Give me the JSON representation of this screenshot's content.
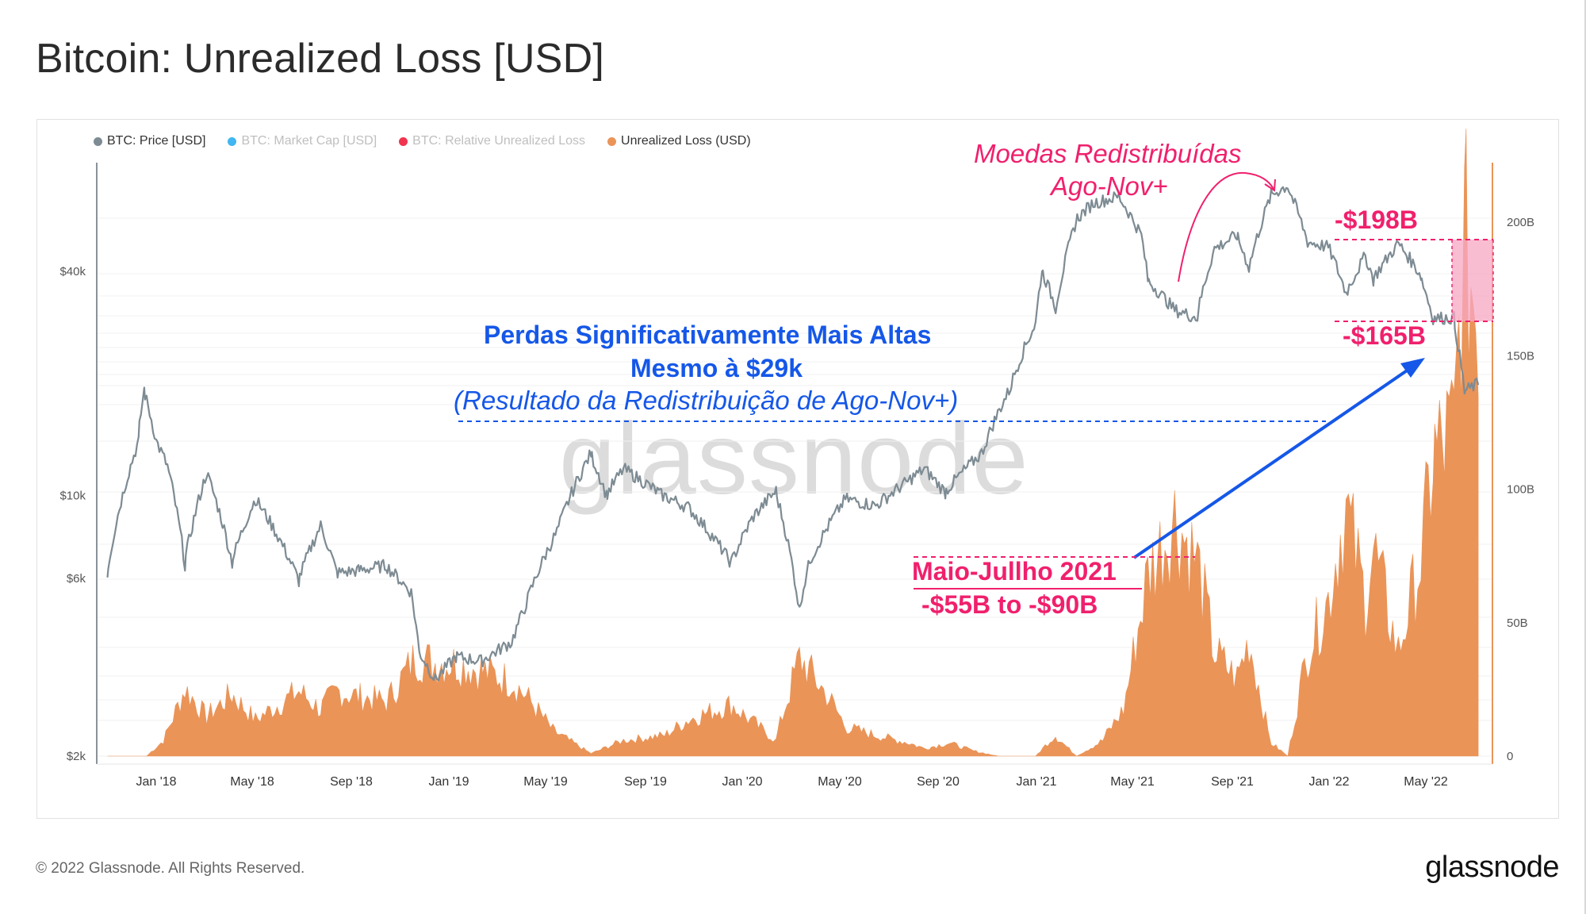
{
  "title": "Bitcoin: Unrealized Loss [USD]",
  "footer": "© 2022 Glassnode. All Rights Reserved.",
  "brand": "glassnode",
  "watermark": "glassnode",
  "legend": [
    {
      "label": "BTC: Price [USD]",
      "color": "#7d8b93",
      "active": true
    },
    {
      "label": "BTC: Market Cap [USD]",
      "color": "#41b6f0",
      "active": false
    },
    {
      "label": "BTC: Relative Unrealized Loss",
      "color": "#f0344e",
      "active": false
    },
    {
      "label": "Unrealized Loss (USD)",
      "color": "#ea9458",
      "active": true
    }
  ],
  "annotations": {
    "blue_line1": "Perdas Significativamente Mais Altas",
    "blue_line2": "Mesmo à $29k",
    "blue_line3": "(Resultado da Redistribuição de Ago-Nov+)",
    "pink_line1": "Moedas Redistribuídas",
    "pink_line2": "Ago-Nov+",
    "label_198": "-$198B",
    "label_165": "-$165B",
    "maio_line1": "Maio-Jullho 2021",
    "maio_line2": "-$55B to -$90B"
  },
  "chart_data": {
    "type": "line",
    "x_tick_labels": [
      "Jan '18",
      "May '18",
      "Sep '18",
      "Jan '19",
      "May '19",
      "Sep '19",
      "Jan '20",
      "May '20",
      "Sep '20",
      "Jan '21",
      "May '21",
      "Sep '21",
      "Jan '22",
      "May '22"
    ],
    "left_axis": {
      "scale": "log",
      "tick_labels": [
        "$2k",
        "$6k",
        "$10k",
        "$40k"
      ],
      "tick_values": [
        2000,
        6000,
        10000,
        40000
      ],
      "range": [
        2000,
        80000
      ]
    },
    "right_axis": {
      "scale": "linear",
      "tick_labels": [
        "0",
        "50B",
        "100B",
        "150B",
        "200B"
      ],
      "tick_values": [
        0,
        50,
        100,
        150,
        200
      ],
      "range": [
        0,
        225
      ]
    },
    "colors": {
      "price": "#7d8b93",
      "loss": "#ea9458",
      "blue": "#1557e8",
      "pink": "#f0206d"
    },
    "series": [
      {
        "name": "BTC: Price [USD]",
        "axis": "left",
        "points": [
          [
            "2017-11-01",
            6100
          ],
          [
            "2017-12-10",
            14000
          ],
          [
            "2017-12-17",
            19300
          ],
          [
            "2018-01-01",
            14000
          ],
          [
            "2018-01-15",
            12000
          ],
          [
            "2018-02-06",
            6500
          ],
          [
            "2018-03-05",
            11500
          ],
          [
            "2018-04-06",
            6600
          ],
          [
            "2018-05-05",
            9800
          ],
          [
            "2018-06-28",
            5900
          ],
          [
            "2018-07-25",
            8300
          ],
          [
            "2018-08-14",
            6200
          ],
          [
            "2018-09-10",
            6300
          ],
          [
            "2018-10-15",
            6500
          ],
          [
            "2018-11-15",
            5500
          ],
          [
            "2018-11-25",
            3800
          ],
          [
            "2018-12-15",
            3200
          ],
          [
            "2019-01-10",
            3700
          ],
          [
            "2019-02-10",
            3600
          ],
          [
            "2019-03-20",
            4050
          ],
          [
            "2019-04-05",
            5000
          ],
          [
            "2019-05-15",
            8000
          ],
          [
            "2019-06-26",
            13000
          ],
          [
            "2019-07-15",
            10000
          ],
          [
            "2019-08-05",
            11800
          ],
          [
            "2019-09-20",
            10100
          ],
          [
            "2019-10-25",
            9300
          ],
          [
            "2019-12-18",
            6600
          ],
          [
            "2020-01-15",
            8800
          ],
          [
            "2020-02-12",
            10300
          ],
          [
            "2020-03-12",
            4900
          ],
          [
            "2020-03-25",
            6700
          ],
          [
            "2020-05-08",
            9800
          ],
          [
            "2020-06-15",
            9400
          ],
          [
            "2020-07-27",
            11000
          ],
          [
            "2020-08-15",
            11800
          ],
          [
            "2020-09-10",
            10200
          ],
          [
            "2020-10-25",
            13000
          ],
          [
            "2020-11-30",
            19500
          ],
          [
            "2020-12-31",
            29000
          ],
          [
            "2021-01-08",
            40500
          ],
          [
            "2021-01-25",
            32000
          ],
          [
            "2021-02-20",
            55000
          ],
          [
            "2021-03-13",
            61000
          ],
          [
            "2021-04-14",
            63500
          ],
          [
            "2021-05-12",
            50000
          ],
          [
            "2021-05-20",
            38000
          ],
          [
            "2021-06-22",
            31500
          ],
          [
            "2021-07-20",
            30000
          ],
          [
            "2021-08-10",
            46000
          ],
          [
            "2021-09-07",
            50000
          ],
          [
            "2021-09-22",
            41000
          ],
          [
            "2021-10-20",
            64000
          ],
          [
            "2021-11-10",
            68000
          ],
          [
            "2021-12-05",
            48000
          ],
          [
            "2021-12-31",
            46500
          ],
          [
            "2022-01-22",
            35000
          ],
          [
            "2022-02-15",
            44000
          ],
          [
            "2022-02-25",
            38000
          ],
          [
            "2022-03-28",
            47500
          ],
          [
            "2022-04-25",
            39000
          ],
          [
            "2022-05-10",
            30000
          ],
          [
            "2022-06-05",
            30000
          ],
          [
            "2022-06-18",
            19000
          ],
          [
            "2022-07-05",
            20000
          ]
        ]
      },
      {
        "name": "Unrealized Loss (USD)",
        "axis": "right",
        "points": [
          [
            "2017-11-01",
            0
          ],
          [
            "2017-12-20",
            0
          ],
          [
            "2018-01-10",
            6
          ],
          [
            "2018-02-06",
            26
          ],
          [
            "2018-03-05",
            15
          ],
          [
            "2018-04-06",
            24
          ],
          [
            "2018-05-05",
            14
          ],
          [
            "2018-06-28",
            25
          ],
          [
            "2018-07-25",
            18
          ],
          [
            "2018-08-14",
            25
          ],
          [
            "2018-09-10",
            23
          ],
          [
            "2018-10-15",
            21
          ],
          [
            "2018-11-20",
            38
          ],
          [
            "2018-12-15",
            36
          ],
          [
            "2019-01-10",
            36
          ],
          [
            "2019-02-10",
            33
          ],
          [
            "2019-03-20",
            29
          ],
          [
            "2019-04-10",
            22
          ],
          [
            "2019-05-10",
            10
          ],
          [
            "2019-06-26",
            1
          ],
          [
            "2019-08-05",
            6
          ],
          [
            "2019-09-25",
            8
          ],
          [
            "2019-10-25",
            14
          ],
          [
            "2019-12-18",
            20
          ],
          [
            "2020-01-15",
            13
          ],
          [
            "2020-02-12",
            6
          ],
          [
            "2020-03-12",
            38
          ],
          [
            "2020-04-15",
            24
          ],
          [
            "2020-05-10",
            11
          ],
          [
            "2020-06-15",
            8
          ],
          [
            "2020-07-27",
            5
          ],
          [
            "2020-08-15",
            3
          ],
          [
            "2020-09-15",
            5
          ],
          [
            "2020-10-15",
            2
          ],
          [
            "2020-11-15",
            0
          ],
          [
            "2020-12-31",
            0
          ],
          [
            "2021-01-25",
            8
          ],
          [
            "2021-02-20",
            0
          ],
          [
            "2021-03-25",
            6
          ],
          [
            "2021-04-20",
            18
          ],
          [
            "2021-05-20",
            70
          ],
          [
            "2021-06-22",
            92
          ],
          [
            "2021-07-20",
            75
          ],
          [
            "2021-08-10",
            40
          ],
          [
            "2021-09-07",
            30
          ],
          [
            "2021-09-22",
            45
          ],
          [
            "2021-10-20",
            5
          ],
          [
            "2021-11-10",
            0
          ],
          [
            "2021-12-05",
            40
          ],
          [
            "2021-12-31",
            60
          ],
          [
            "2022-01-22",
            96
          ],
          [
            "2022-02-15",
            60
          ],
          [
            "2022-02-25",
            80
          ],
          [
            "2022-03-28",
            40
          ],
          [
            "2022-04-25",
            75
          ],
          [
            "2022-05-10",
            115
          ],
          [
            "2022-06-05",
            125
          ],
          [
            "2022-06-18",
            198
          ],
          [
            "2022-07-05",
            170
          ]
        ]
      }
    ]
  }
}
